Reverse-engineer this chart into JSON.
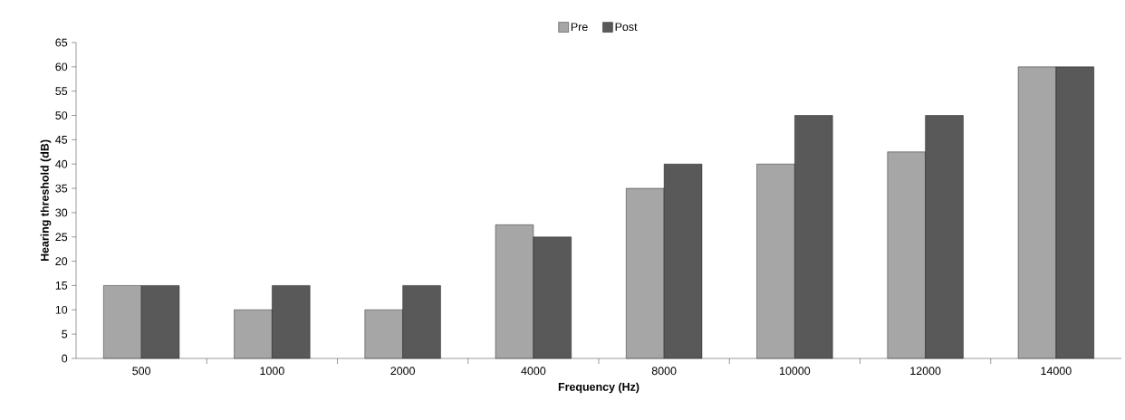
{
  "chart_data": {
    "type": "bar",
    "xlabel": "Frequency (Hz)",
    "ylabel": "Hearing threshold (dB)",
    "categories": [
      "500",
      "1000",
      "2000",
      "4000",
      "8000",
      "10000",
      "12000",
      "14000"
    ],
    "series": [
      {
        "name": "Pre",
        "color": "#a6a6a6",
        "values": [
          15,
          10,
          10,
          27.5,
          35,
          40,
          42.5,
          60
        ]
      },
      {
        "name": "Post",
        "color": "#595959",
        "values": [
          15,
          15,
          15,
          25,
          40,
          50,
          50,
          60
        ]
      }
    ],
    "ylim": [
      0,
      65
    ],
    "yticks": [
      0,
      5,
      10,
      15,
      20,
      25,
      30,
      35,
      40,
      45,
      50,
      55,
      60,
      65
    ],
    "grid": false,
    "legend": "top"
  }
}
